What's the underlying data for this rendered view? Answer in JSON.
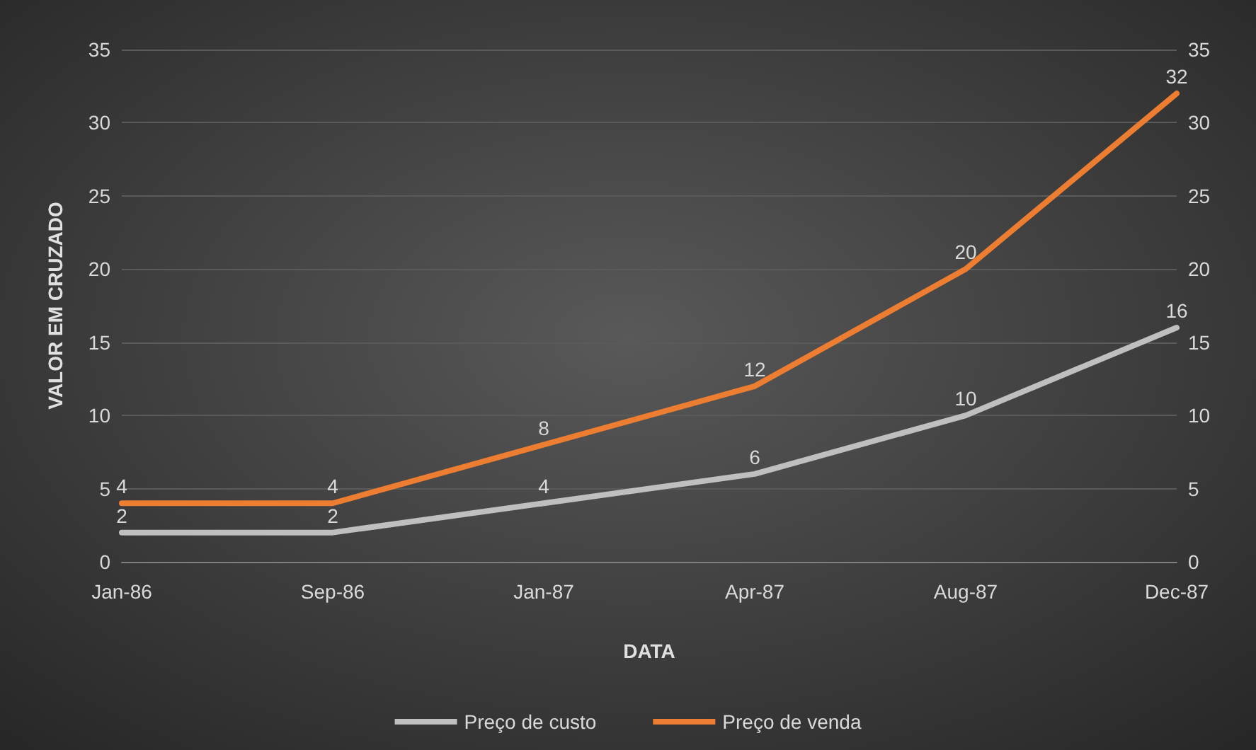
{
  "chart_data": {
    "type": "line",
    "xlabel": "DATA",
    "ylabel": "VALOR EM CRUZADO",
    "categories": [
      "Jan-86",
      "Sep-86",
      "Jan-87",
      "Apr-87",
      "Aug-87",
      "Dec-87"
    ],
    "series": [
      {
        "name": "Preço de custo",
        "color": "#bfbfbf",
        "values": [
          2,
          2,
          4,
          6,
          10,
          16
        ]
      },
      {
        "name": "Preço de venda",
        "color": "#ed7d31",
        "values": [
          4,
          4,
          8,
          12,
          20,
          32
        ]
      }
    ],
    "ylim": [
      0,
      35
    ],
    "yticks": [
      0,
      5,
      10,
      15,
      20,
      25,
      30,
      35
    ],
    "y2lim": [
      0,
      35
    ],
    "y2ticks": [
      0,
      5,
      10,
      15,
      20,
      25,
      30,
      35
    ],
    "grid": "y",
    "legend": "bottom",
    "marker": "none",
    "line_style": "solid",
    "data_labels": true
  }
}
